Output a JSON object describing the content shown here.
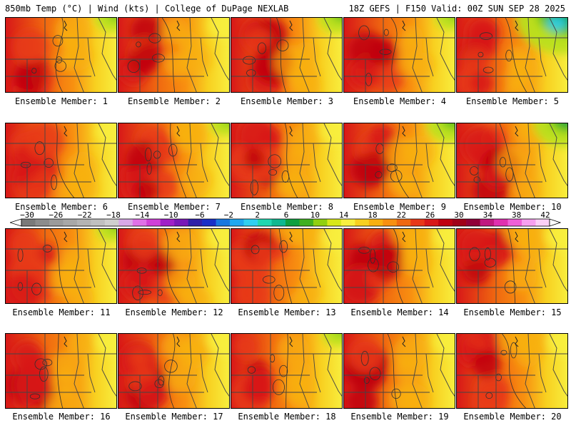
{
  "header": {
    "left": "850mb Temp (°C) | Wind (kts) | College of DuPage NEXLAB",
    "right": "18Z GEFS | F150 Valid: 00Z SUN SEP 28 2025"
  },
  "members": [
    {
      "label": "Ensemble Member: 1",
      "warmth": 0.72,
      "cool_ne": 0.25
    },
    {
      "label": "Ensemble Member: 2",
      "warmth": 0.55,
      "cool_ne": 0.1
    },
    {
      "label": "Ensemble Member: 3",
      "warmth": 0.7,
      "cool_ne": 0.3
    },
    {
      "label": "Ensemble Member: 4",
      "warmth": 0.68,
      "cool_ne": 0.2
    },
    {
      "label": "Ensemble Member: 5",
      "warmth": 0.55,
      "cool_ne": 0.95
    },
    {
      "label": "Ensemble Member: 6",
      "warmth": 0.8,
      "cool_ne": 0.15
    },
    {
      "label": "Ensemble Member: 7",
      "warmth": 0.75,
      "cool_ne": 0.2
    },
    {
      "label": "Ensemble Member: 8",
      "warmth": 0.78,
      "cool_ne": 0.1
    },
    {
      "label": "Ensemble Member: 9",
      "warmth": 0.7,
      "cool_ne": 0.4
    },
    {
      "label": "Ensemble Member: 10",
      "warmth": 0.72,
      "cool_ne": 0.55
    },
    {
      "label": "Ensemble Member: 11",
      "warmth": 0.7,
      "cool_ne": 0.2
    },
    {
      "label": "Ensemble Member: 12",
      "warmth": 0.78,
      "cool_ne": 0.05
    },
    {
      "label": "Ensemble Member: 13",
      "warmth": 0.65,
      "cool_ne": 0.05
    },
    {
      "label": "Ensemble Member: 14",
      "warmth": 0.72,
      "cool_ne": 0.15
    },
    {
      "label": "Ensemble Member: 15",
      "warmth": 0.65,
      "cool_ne": 0.05
    },
    {
      "label": "Ensemble Member: 16",
      "warmth": 0.62,
      "cool_ne": 0.05
    },
    {
      "label": "Ensemble Member: 17",
      "warmth": 0.65,
      "cool_ne": 0.05
    },
    {
      "label": "Ensemble Member: 18",
      "warmth": 0.7,
      "cool_ne": 0.2
    },
    {
      "label": "Ensemble Member: 19",
      "warmth": 0.6,
      "cool_ne": 0.15
    },
    {
      "label": "Ensemble Member: 20",
      "warmth": 0.65,
      "cool_ne": 0.05
    }
  ],
  "colorbar": {
    "ticks": [
      "−30",
      "−26",
      "−22",
      "−18",
      "−14",
      "−10",
      "−6",
      "−2",
      "2",
      "6",
      "10",
      "14",
      "18",
      "22",
      "26",
      "30",
      "34",
      "38",
      "42"
    ],
    "colors": [
      "#7a7a7a",
      "#8c8c8c",
      "#9b9b9b",
      "#a8a8a8",
      "#b4b4b4",
      "#c0c0c0",
      "#cfcfcf",
      "#d8a8e8",
      "#e070e8",
      "#d040d8",
      "#a020c8",
      "#7818b8",
      "#3020a8",
      "#1830c8",
      "#1878e0",
      "#20a8f0",
      "#30d0f0",
      "#20d8b0",
      "#10b890",
      "#10a040",
      "#40b020",
      "#90d010",
      "#d8e818",
      "#f8f040",
      "#f8d020",
      "#f8b010",
      "#f89010",
      "#f06810",
      "#e83818",
      "#d81818",
      "#c00010",
      "#a00018",
      "#900038",
      "#c01880",
      "#e030b0",
      "#f060d8",
      "#f8a0f0",
      "#fcd0f8"
    ]
  },
  "palette": {
    "green_dark": "#10a040",
    "green": "#60c020",
    "lime": "#b8e020",
    "yellow": "#f8f040",
    "gold": "#f8d020",
    "orange_light": "#f8b010",
    "orange": "#f89010",
    "orange_dark": "#f06810",
    "red_orange": "#e83818",
    "red": "#d81818",
    "red_dark": "#c00010",
    "maroon": "#a00018",
    "cyan": "#30d0f0"
  }
}
